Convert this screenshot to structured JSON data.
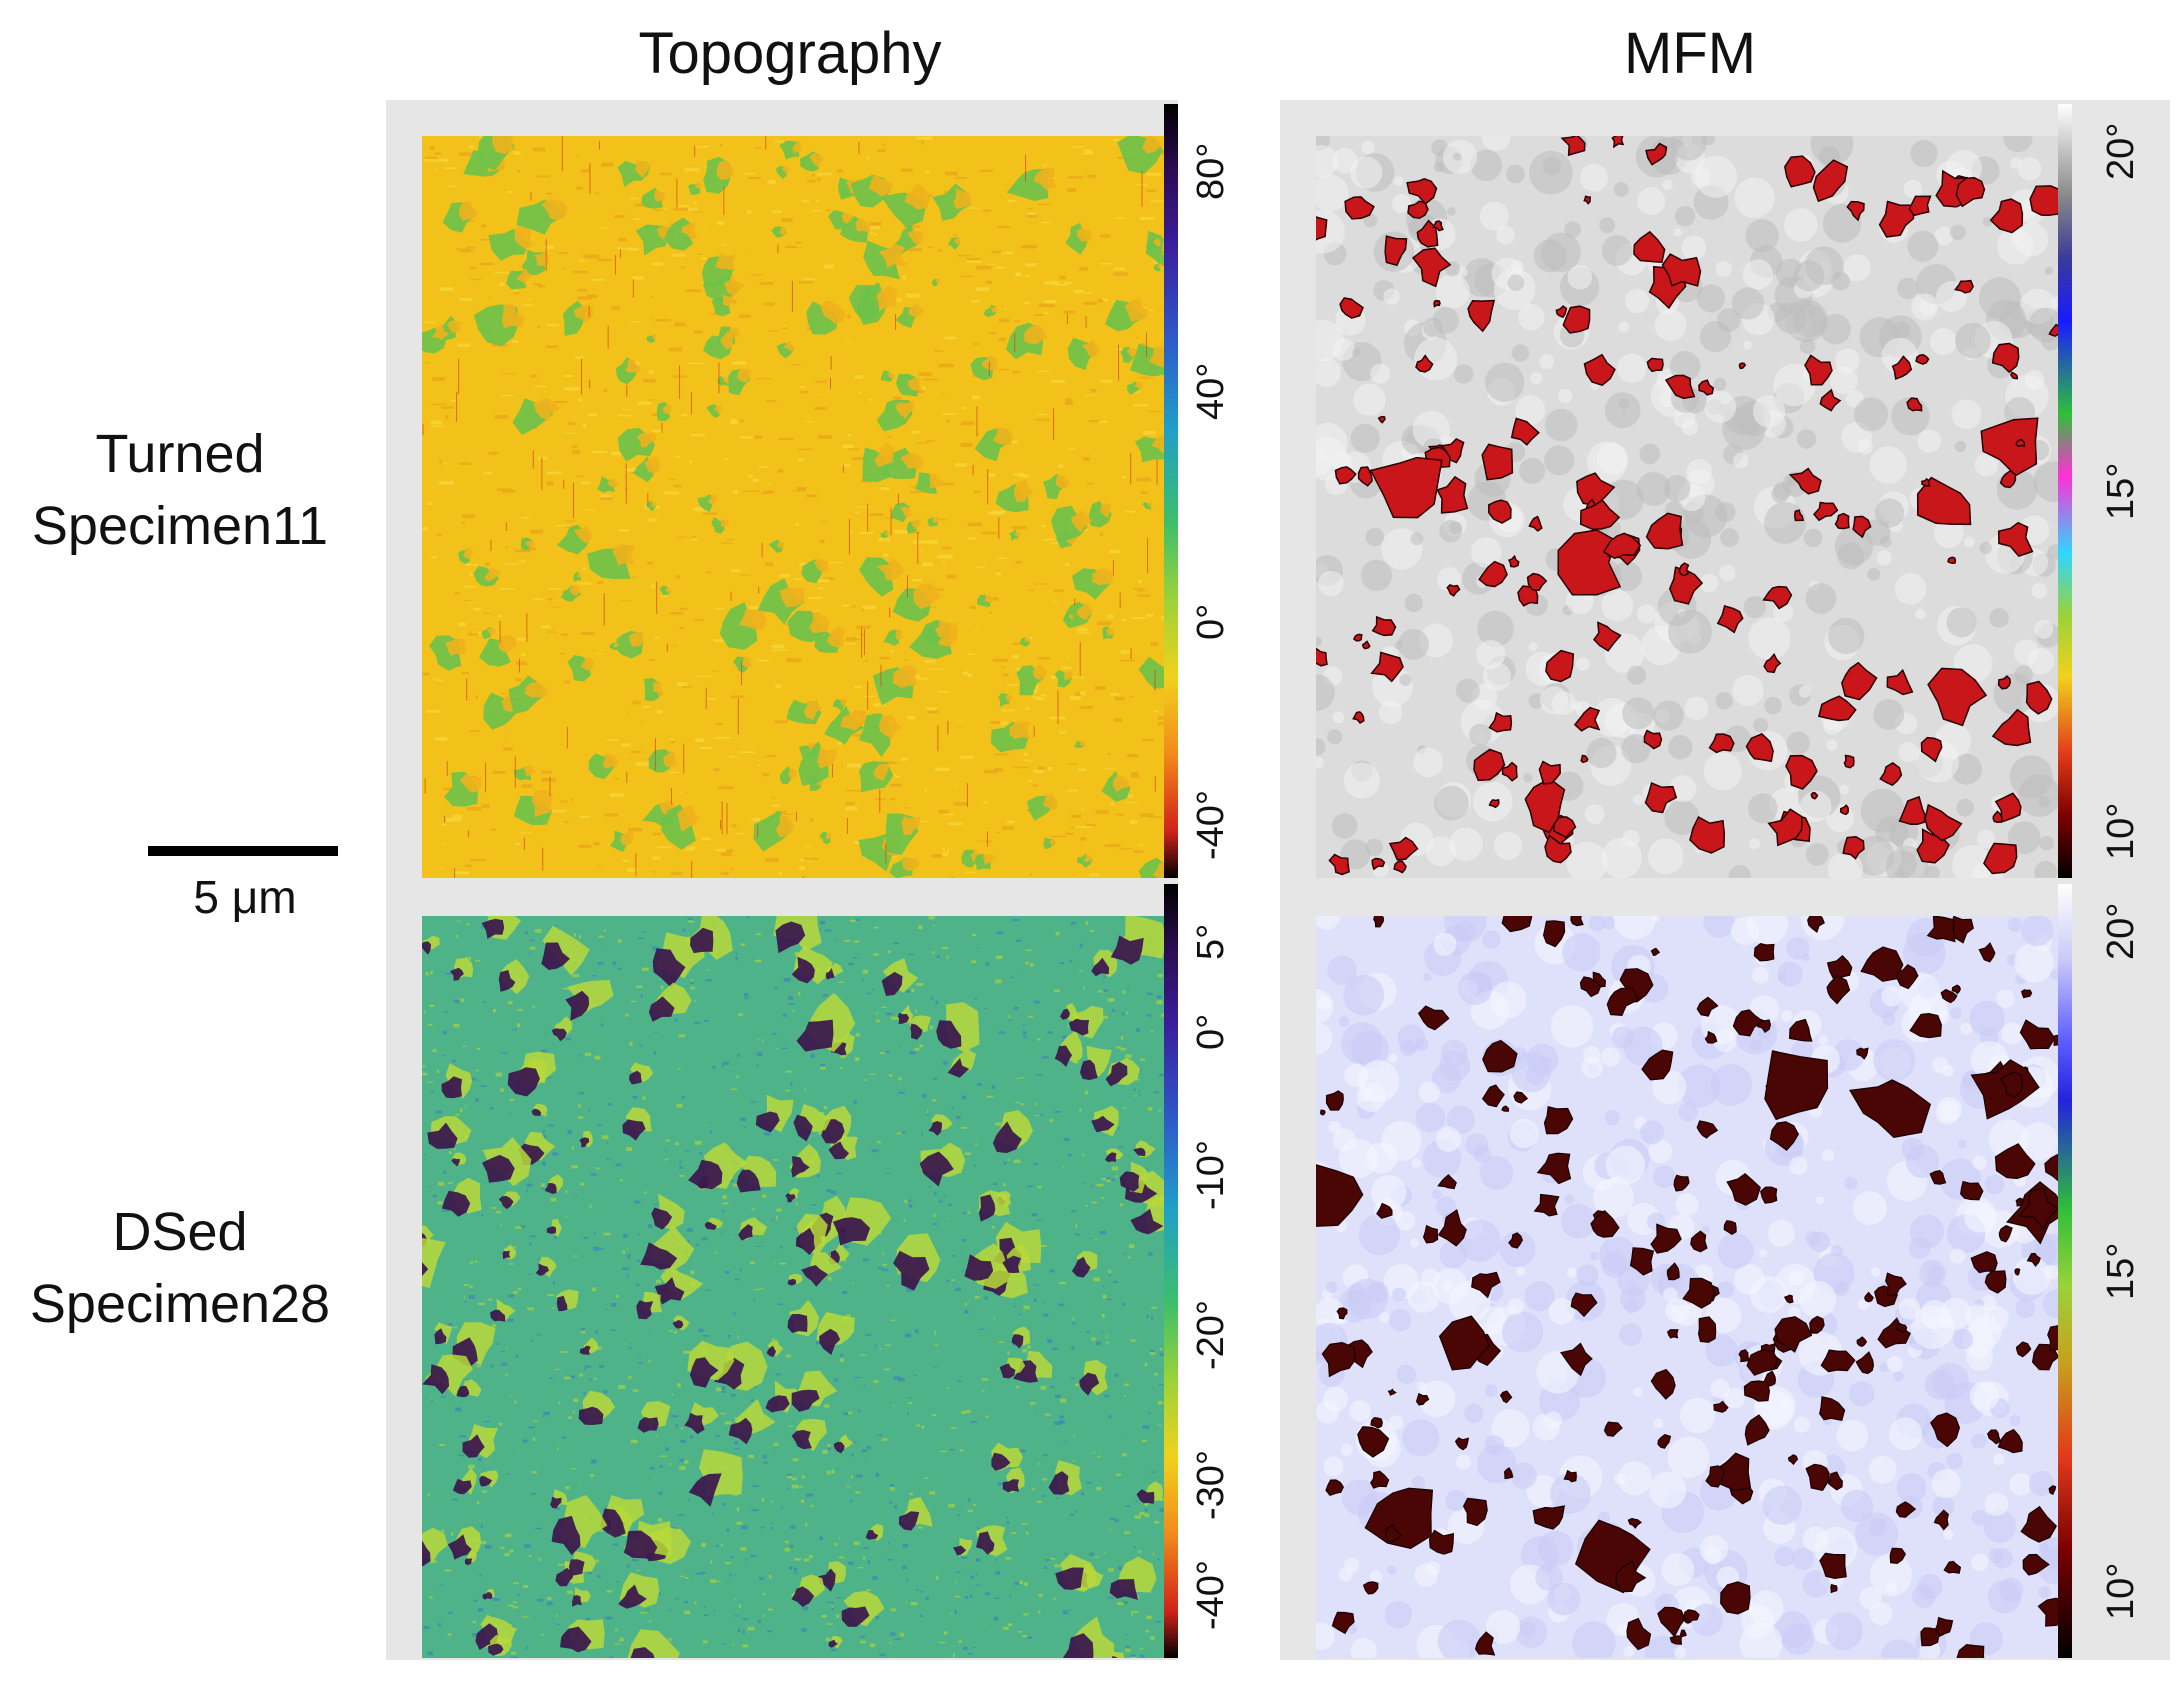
{
  "columns": {
    "topography": "Topography",
    "mfm": "MFM"
  },
  "rows": [
    {
      "line1": "Turned",
      "line2": "Specimen11"
    },
    {
      "line1": "DSed",
      "line2": "Specimen28"
    }
  ],
  "scale_bar": {
    "label": "5 μm"
  },
  "colorbars": {
    "topo_row1": [
      "80°",
      "40°",
      "0°",
      "-40°"
    ],
    "topo_row2": [
      "5°",
      "0°",
      "-10°",
      "-20°",
      "-30°",
      "-40°"
    ],
    "mfm_row1": [
      "20°",
      "15°",
      "10°"
    ],
    "mfm_row2": [
      "20°",
      "15°",
      "10°"
    ]
  },
  "colors": {
    "topo1_base": "#f2c21b",
    "topo1_feature": "#6cc24a",
    "topo2_base": "#4fb38a",
    "topo2_feature": "#3c1a4e",
    "mfm1_base": "#dcdcdc",
    "mfm1_domain": "#c8161b",
    "mfm2_base": "#dfe1fb",
    "mfm2_domain": "#4a0505"
  }
}
